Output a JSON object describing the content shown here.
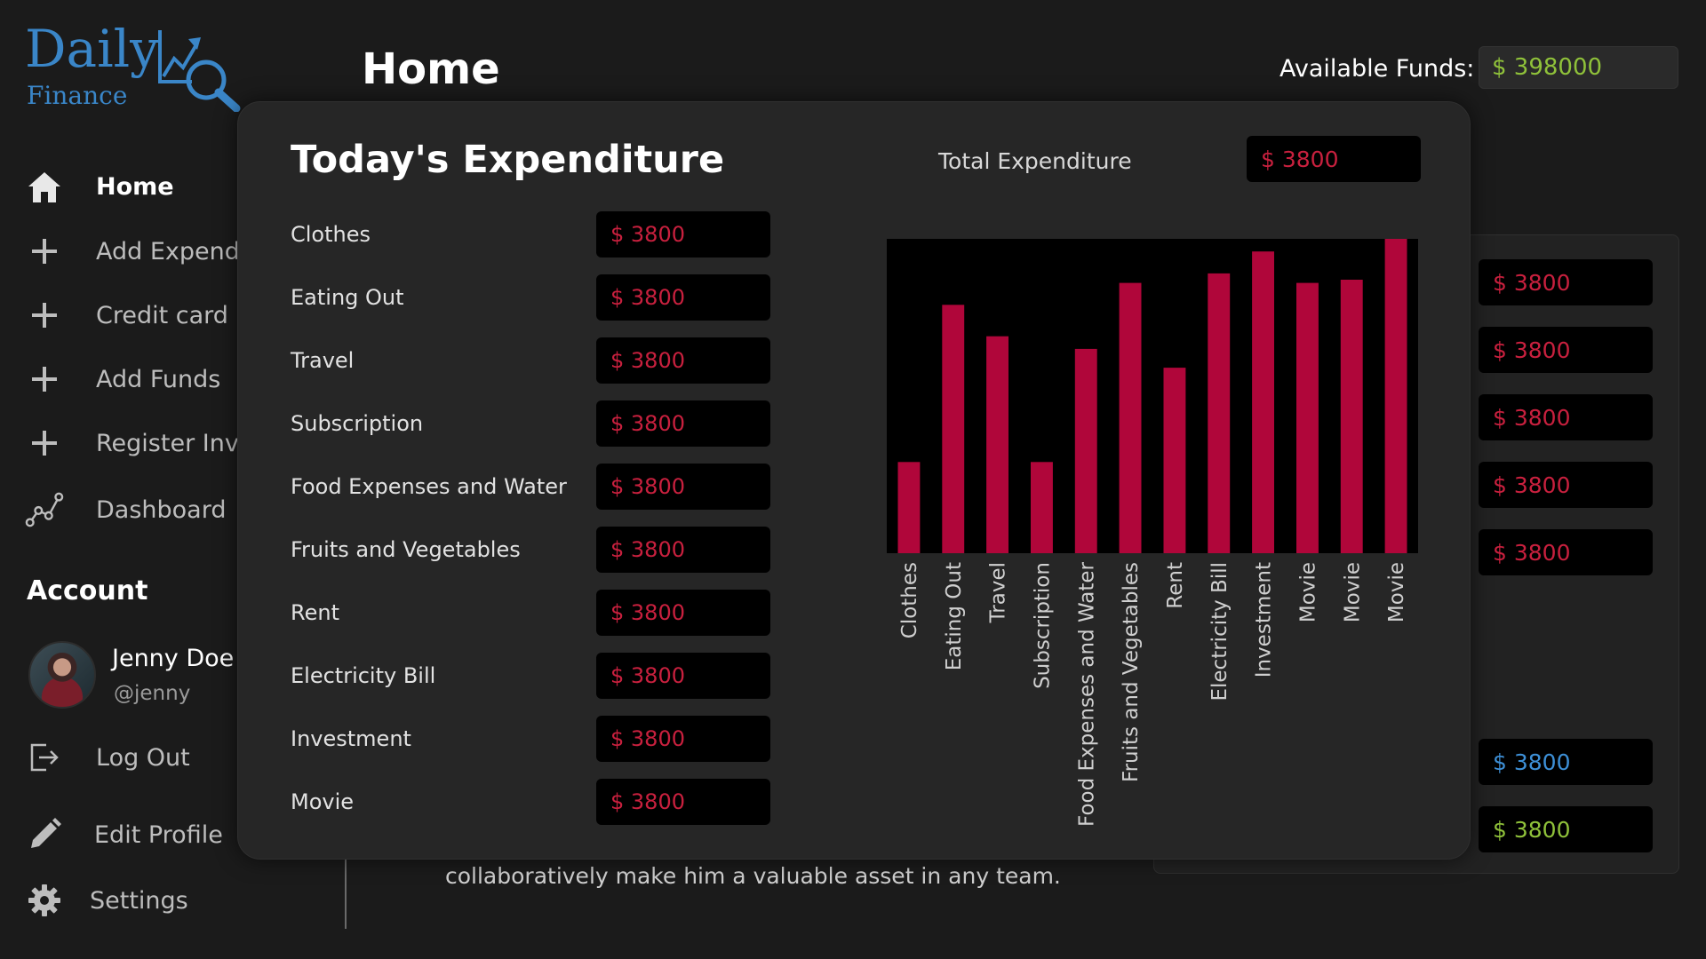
{
  "app": {
    "logo_top": "Daily",
    "logo_bottom": "Finance"
  },
  "header": {
    "title": "Home",
    "funds_label": "Available Funds:",
    "funds_value": "$ 398000"
  },
  "sidebar": {
    "items": [
      {
        "label": "Home",
        "icon": "home-icon",
        "active": true
      },
      {
        "label": "Add Expendi",
        "icon": "plus-icon"
      },
      {
        "label": "Credit card E",
        "icon": "plus-icon"
      },
      {
        "label": "Add Funds",
        "icon": "plus-icon"
      },
      {
        "label": "Register Inve",
        "icon": "plus-icon"
      },
      {
        "label": "Dashboard",
        "icon": "chart-line-icon"
      }
    ],
    "account_title": "Account",
    "user": {
      "name": "Jenny Doe",
      "handle": "@jenny"
    },
    "bottom_items": [
      {
        "label": "Log Out",
        "icon": "logout-icon"
      },
      {
        "label": "Edit Profile",
        "icon": "pencil-icon"
      },
      {
        "label": "Settings",
        "icon": "gear-icon"
      }
    ]
  },
  "background": {
    "amounts": [
      "$ 3800",
      "$ 3800",
      "$ 3800",
      "$ 3800",
      "$ 3800",
      "$ 3800",
      "$ 3800"
    ],
    "amount_colors": [
      "#c8203e",
      "#3d8fd6",
      "#8fc13a"
    ],
    "text": "collaboratively make him a valuable asset in any team."
  },
  "modal": {
    "title": "Today's Expenditure",
    "total_label": "Total Expenditure",
    "total_value": "$ 3800",
    "rows": [
      {
        "label": "Clothes",
        "value": "$ 3800"
      },
      {
        "label": "Eating Out",
        "value": "$ 3800"
      },
      {
        "label": "Travel",
        "value": "$ 3800"
      },
      {
        "label": "Subscription",
        "value": "$ 3800"
      },
      {
        "label": "Food Expenses and Water",
        "value": "$ 3800"
      },
      {
        "label": "Fruits and Vegetables",
        "value": "$ 3800"
      },
      {
        "label": "Rent",
        "value": "$ 3800"
      },
      {
        "label": "Electricity Bill",
        "value": "$ 3800"
      },
      {
        "label": "Investment",
        "value": "$ 3800"
      },
      {
        "label": "Movie",
        "value": "$ 3800"
      }
    ]
  },
  "chart_data": {
    "type": "bar",
    "categories": [
      "Clothes",
      "Eating Out",
      "Travel",
      "Subscription",
      "Food Expenses and Water",
      "Fruits and Vegetables",
      "Rent",
      "Electricity Bill",
      "Investment",
      "Movie",
      "Movie",
      "Movie"
    ],
    "values": [
      29,
      79,
      69,
      29,
      65,
      86,
      59,
      89,
      96,
      86,
      87,
      100
    ],
    "ylim": [
      0,
      100
    ],
    "bar_color": "#b0063a",
    "background": "#000000",
    "title": "",
    "xlabel": "",
    "ylabel": ""
  }
}
